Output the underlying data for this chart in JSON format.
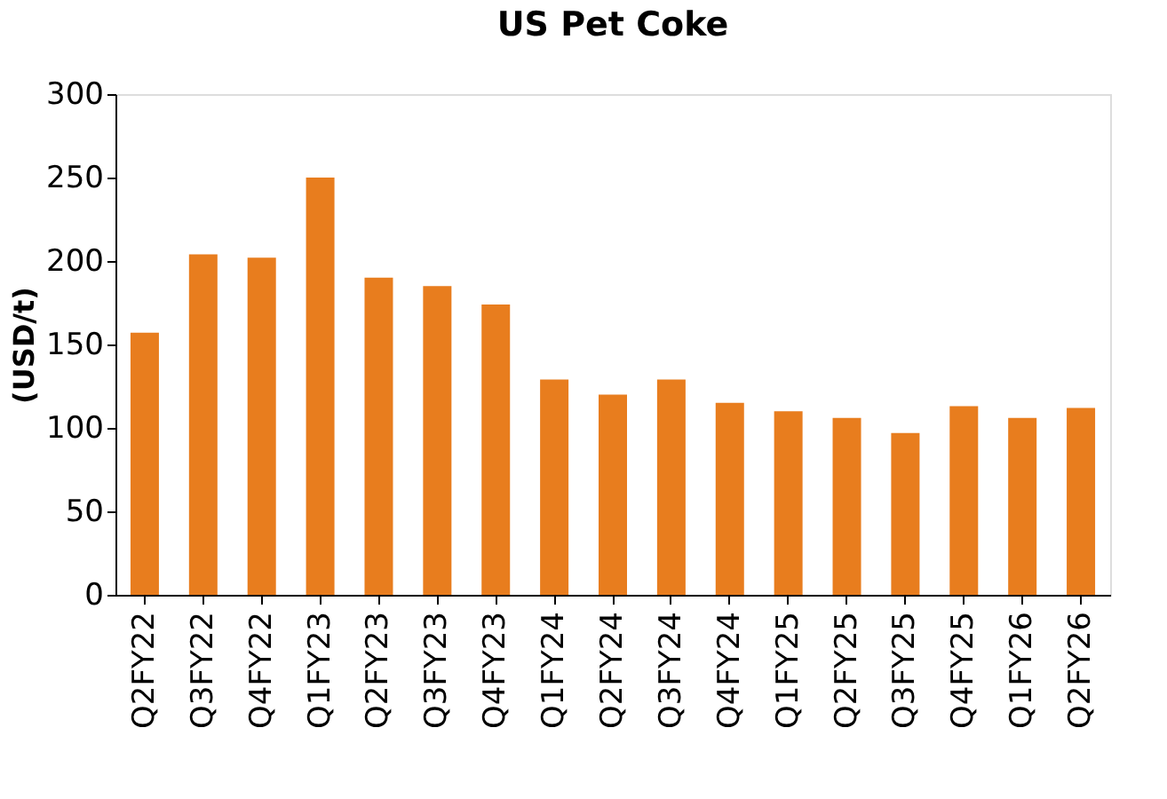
{
  "chart_data": {
    "type": "bar",
    "title": "US Pet Coke",
    "ylabel": "(USD/t)",
    "categories": [
      "Q2FY22",
      "Q3FY22",
      "Q4FY22",
      "Q1FY23",
      "Q2FY23",
      "Q3FY23",
      "Q4FY23",
      "Q1FY24",
      "Q2FY24",
      "Q3FY24",
      "Q4FY24",
      "Q1FY25",
      "Q2FY25",
      "Q3FY25",
      "Q4FY25",
      "Q1FY26",
      "Q2FY26"
    ],
    "values": [
      157,
      204,
      202,
      250,
      190,
      185,
      174,
      129,
      120,
      129,
      115,
      110,
      106,
      97,
      113,
      106,
      112
    ],
    "color": "#e87d1e",
    "ylim": [
      0,
      300
    ],
    "yticks": [
      0,
      50,
      100,
      150,
      200,
      250,
      300
    ],
    "grid": false
  }
}
